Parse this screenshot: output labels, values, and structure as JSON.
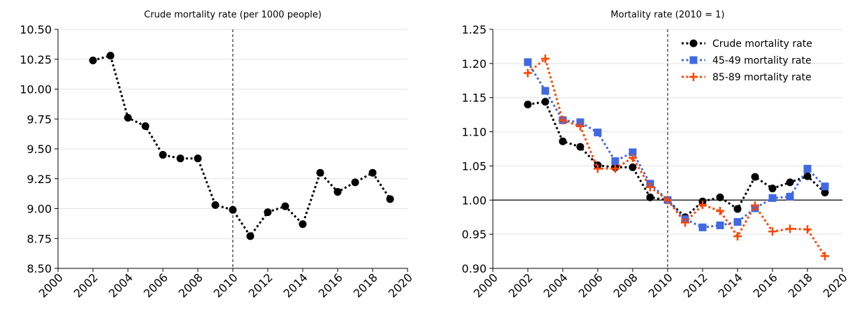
{
  "chart_data": [
    {
      "type": "line",
      "title": "Crude mortality rate (per 1000 people)",
      "xlabel": "",
      "ylabel": "",
      "xlim": [
        2000,
        2020
      ],
      "ylim": [
        8.5,
        10.5
      ],
      "xticks": [
        "2000",
        "2002",
        "2004",
        "2006",
        "2008",
        "2010",
        "2012",
        "2014",
        "2016",
        "2018",
        "2020"
      ],
      "yticks": [
        "8.50",
        "8.75",
        "9.00",
        "9.25",
        "9.50",
        "9.75",
        "10.00",
        "10.25",
        "10.50"
      ],
      "grid": "horizontal",
      "vline_x": 2010,
      "series": [
        {
          "color": "#000000",
          "marker": "circle",
          "x": [
            2002,
            2003,
            2004,
            2005,
            2006,
            2007,
            2008,
            2009,
            2010,
            2011,
            2012,
            2013,
            2014,
            2015,
            2016,
            2017,
            2018,
            2019
          ],
          "y": [
            10.24,
            10.28,
            9.76,
            9.69,
            9.45,
            9.42,
            9.42,
            9.03,
            8.99,
            8.77,
            8.97,
            9.02,
            8.87,
            9.3,
            9.14,
            9.22,
            9.3,
            9.08
          ]
        }
      ]
    },
    {
      "type": "line",
      "title": "Mortality rate (2010 = 1)",
      "xlabel": "",
      "ylabel": "",
      "xlim": [
        2000,
        2020
      ],
      "ylim": [
        0.9,
        1.25
      ],
      "xticks": [
        "2000",
        "2002",
        "2004",
        "2006",
        "2008",
        "2010",
        "2012",
        "2014",
        "2016",
        "2018",
        "2020"
      ],
      "yticks": [
        "0.90",
        "0.95",
        "1.00",
        "1.05",
        "1.10",
        "1.15",
        "1.20",
        "1.25"
      ],
      "grid": "horizontal",
      "vline_x": 2010,
      "hline_y": 1.0,
      "legend": "top-right",
      "series": [
        {
          "name": "Crude mortality rate",
          "color": "#000000",
          "marker": "circle",
          "x": [
            2002,
            2003,
            2004,
            2005,
            2006,
            2007,
            2008,
            2009,
            2010,
            2011,
            2012,
            2013,
            2014,
            2015,
            2016,
            2017,
            2018,
            2019
          ],
          "y": [
            1.14,
            1.144,
            1.086,
            1.078,
            1.051,
            1.048,
            1.048,
            1.004,
            1.0,
            0.975,
            0.998,
            1.004,
            0.987,
            1.034,
            1.017,
            1.026,
            1.035,
            1.011
          ]
        },
        {
          "name": "45-49 mortality rate",
          "color": "#4169e1",
          "marker": "square",
          "x": [
            2002,
            2003,
            2004,
            2005,
            2006,
            2007,
            2008,
            2009,
            2010,
            2011,
            2012,
            2013,
            2014,
            2015,
            2016,
            2017,
            2018,
            2019
          ],
          "y": [
            1.202,
            1.16,
            1.117,
            1.114,
            1.099,
            1.057,
            1.07,
            1.024,
            1.0,
            0.972,
            0.96,
            0.963,
            0.968,
            0.988,
            1.003,
            1.005,
            1.046,
            1.02
          ]
        },
        {
          "name": "85-89 mortality rate",
          "color": "#ff4500",
          "marker": "plus",
          "x": [
            2002,
            2003,
            2004,
            2005,
            2006,
            2007,
            2008,
            2009,
            2010,
            2011,
            2012,
            2013,
            2014,
            2015,
            2016,
            2017,
            2018,
            2019
          ],
          "y": [
            1.186,
            1.207,
            1.117,
            1.108,
            1.046,
            1.046,
            1.062,
            1.019,
            1.0,
            0.967,
            0.993,
            0.984,
            0.947,
            0.992,
            0.954,
            0.958,
            0.957,
            0.918
          ]
        }
      ]
    }
  ]
}
